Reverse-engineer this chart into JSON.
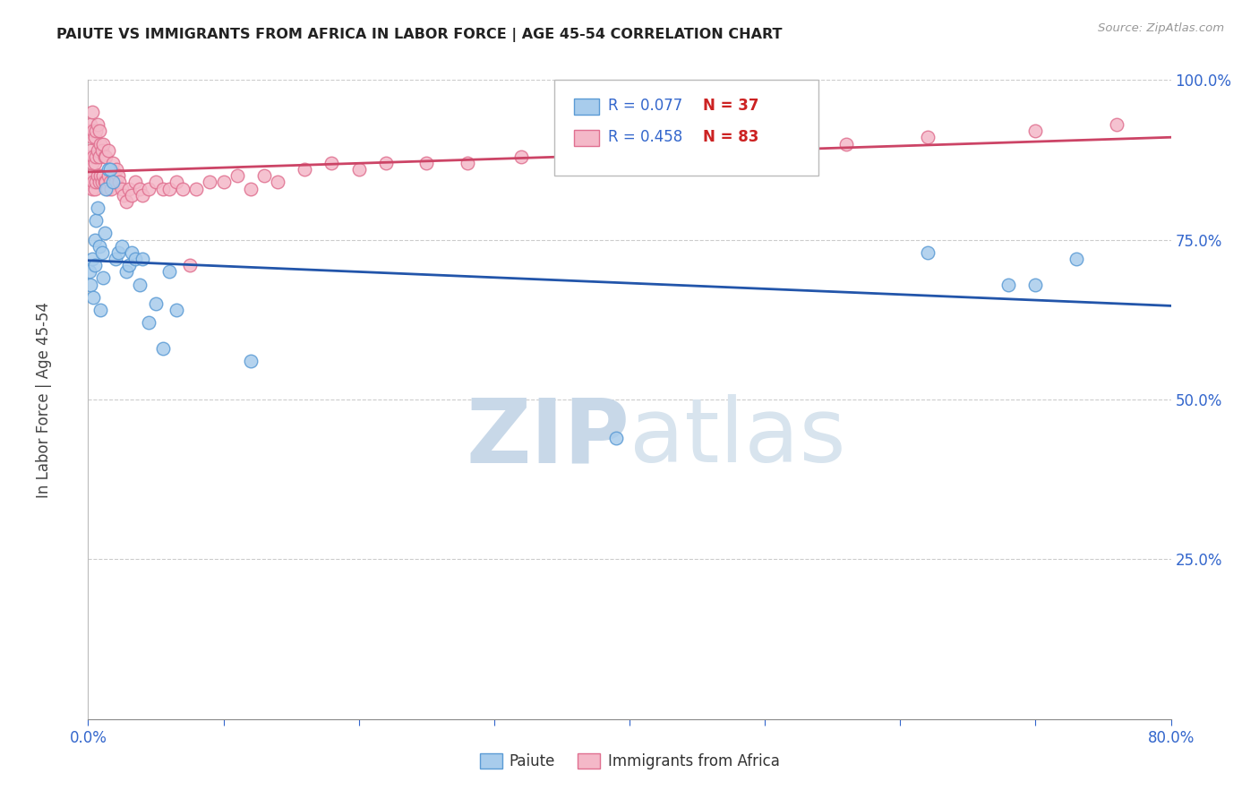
{
  "title": "PAIUTE VS IMMIGRANTS FROM AFRICA IN LABOR FORCE | AGE 45-54 CORRELATION CHART",
  "source_text": "Source: ZipAtlas.com",
  "ylabel": "In Labor Force | Age 45-54",
  "xlim": [
    0.0,
    0.8
  ],
  "ylim": [
    0.0,
    1.0
  ],
  "xtick_labels": [
    "0.0%",
    "",
    "",
    "",
    "",
    "",
    "",
    "",
    "80.0%"
  ],
  "xtick_vals": [
    0.0,
    0.1,
    0.2,
    0.3,
    0.4,
    0.5,
    0.6,
    0.7,
    0.8
  ],
  "ytick_labels": [
    "100.0%",
    "75.0%",
    "50.0%",
    "25.0%"
  ],
  "ytick_vals": [
    1.0,
    0.75,
    0.5,
    0.25
  ],
  "blue_color": "#a8ccec",
  "blue_edge_color": "#5b9bd5",
  "pink_color": "#f4b8c8",
  "pink_edge_color": "#e07090",
  "trend_blue": "#2255aa",
  "trend_pink": "#cc4466",
  "legend_r_blue": "0.077",
  "legend_n_blue": "37",
  "legend_r_pink": "0.458",
  "legend_n_pink": "83",
  "r_color": "#3366cc",
  "n_color": "#cc2222",
  "grid_color": "#cccccc",
  "watermark_zip_color": "#c8d8e8",
  "watermark_atlas_color": "#d8e4ee",
  "title_color": "#222222",
  "axis_label_color": "#444444",
  "tick_color": "#3366cc",
  "paiute_x": [
    0.001,
    0.002,
    0.003,
    0.004,
    0.005,
    0.005,
    0.006,
    0.007,
    0.008,
    0.009,
    0.01,
    0.011,
    0.012,
    0.013,
    0.015,
    0.016,
    0.018,
    0.02,
    0.022,
    0.025,
    0.028,
    0.03,
    0.032,
    0.035,
    0.038,
    0.04,
    0.045,
    0.05,
    0.055,
    0.06,
    0.065,
    0.12,
    0.39,
    0.62,
    0.68,
    0.7,
    0.73
  ],
  "paiute_y": [
    0.7,
    0.68,
    0.72,
    0.66,
    0.71,
    0.75,
    0.78,
    0.8,
    0.74,
    0.64,
    0.73,
    0.69,
    0.76,
    0.83,
    0.86,
    0.86,
    0.84,
    0.72,
    0.73,
    0.74,
    0.7,
    0.71,
    0.73,
    0.72,
    0.68,
    0.72,
    0.62,
    0.65,
    0.58,
    0.7,
    0.64,
    0.56,
    0.44,
    0.73,
    0.68,
    0.68,
    0.72
  ],
  "africa_x": [
    0.001,
    0.001,
    0.001,
    0.002,
    0.002,
    0.002,
    0.003,
    0.003,
    0.003,
    0.003,
    0.004,
    0.004,
    0.004,
    0.005,
    0.005,
    0.005,
    0.006,
    0.006,
    0.006,
    0.007,
    0.007,
    0.007,
    0.008,
    0.008,
    0.008,
    0.009,
    0.009,
    0.01,
    0.01,
    0.011,
    0.011,
    0.012,
    0.012,
    0.013,
    0.013,
    0.014,
    0.015,
    0.015,
    0.016,
    0.017,
    0.018,
    0.019,
    0.02,
    0.021,
    0.022,
    0.023,
    0.025,
    0.026,
    0.028,
    0.03,
    0.032,
    0.035,
    0.038,
    0.04,
    0.045,
    0.05,
    0.055,
    0.06,
    0.065,
    0.07,
    0.075,
    0.08,
    0.09,
    0.1,
    0.11,
    0.12,
    0.13,
    0.14,
    0.16,
    0.18,
    0.2,
    0.22,
    0.25,
    0.28,
    0.32,
    0.36,
    0.4,
    0.45,
    0.5,
    0.56,
    0.62,
    0.7,
    0.76
  ],
  "africa_y": [
    0.84,
    0.88,
    0.92,
    0.85,
    0.89,
    0.93,
    0.83,
    0.87,
    0.91,
    0.95,
    0.84,
    0.88,
    0.92,
    0.83,
    0.87,
    0.91,
    0.84,
    0.88,
    0.92,
    0.85,
    0.89,
    0.93,
    0.84,
    0.88,
    0.92,
    0.85,
    0.9,
    0.84,
    0.89,
    0.85,
    0.9,
    0.84,
    0.88,
    0.84,
    0.88,
    0.83,
    0.85,
    0.89,
    0.84,
    0.83,
    0.87,
    0.85,
    0.84,
    0.86,
    0.85,
    0.84,
    0.83,
    0.82,
    0.81,
    0.83,
    0.82,
    0.84,
    0.83,
    0.82,
    0.83,
    0.84,
    0.83,
    0.83,
    0.84,
    0.83,
    0.71,
    0.83,
    0.84,
    0.84,
    0.85,
    0.83,
    0.85,
    0.84,
    0.86,
    0.87,
    0.86,
    0.87,
    0.87,
    0.87,
    0.88,
    0.88,
    0.89,
    0.89,
    0.9,
    0.9,
    0.91,
    0.92,
    0.93
  ]
}
